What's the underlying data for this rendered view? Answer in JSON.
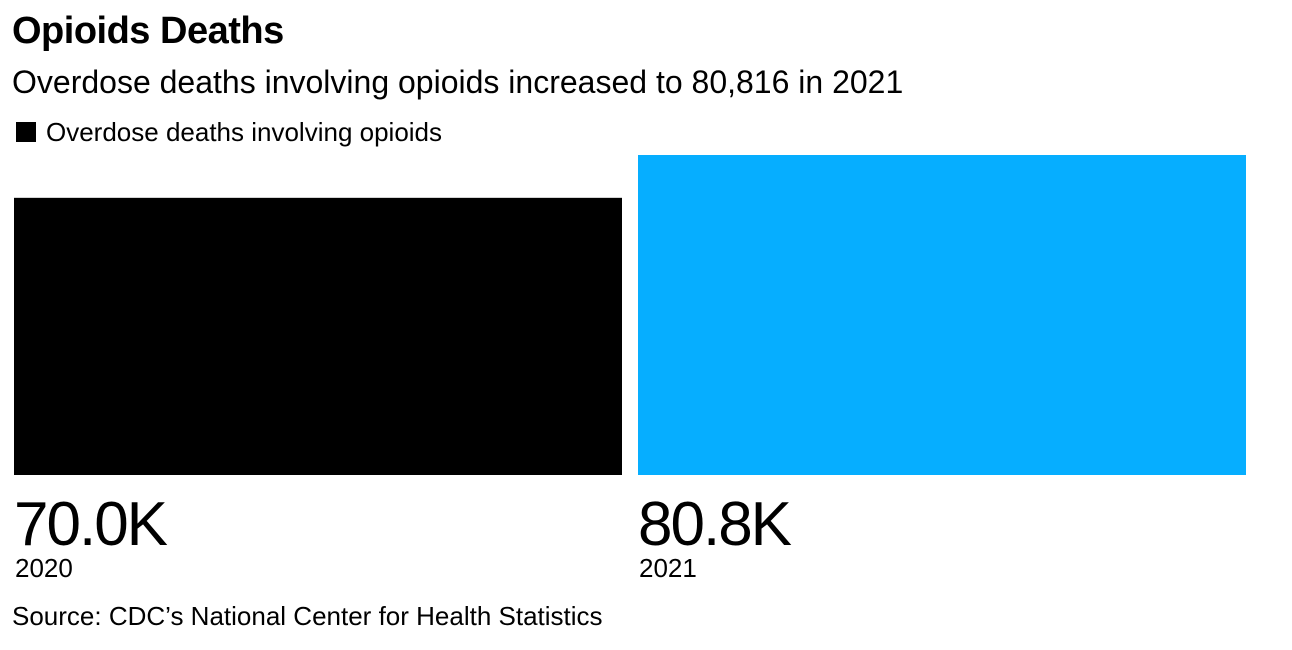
{
  "header": {
    "title": "Opioids Deaths",
    "subtitle": "Overdose deaths involving opioids increased to 80,816 in 2021"
  },
  "legend": {
    "label": "Overdose deaths involving opioids",
    "swatch_color": "#000000"
  },
  "chart_data": {
    "type": "bar",
    "categories": [
      "2020",
      "2021"
    ],
    "values": [
      70000,
      80816
    ],
    "value_labels": [
      "70.0K",
      "80.8K"
    ],
    "bar_colors": [
      "#000000",
      "#06aeff"
    ],
    "series": [
      {
        "name": "Overdose deaths involving opioids",
        "values": [
          70000,
          80816
        ]
      }
    ],
    "title": "Opioids Deaths",
    "subtitle": "Overdose deaths involving opioids increased to 80,816 in 2021",
    "ylim": [
      0,
      80816
    ],
    "grid": false,
    "legend_position": "top-left"
  },
  "footer": {
    "source": "Source: CDC’s National Center for Health Statistics"
  }
}
